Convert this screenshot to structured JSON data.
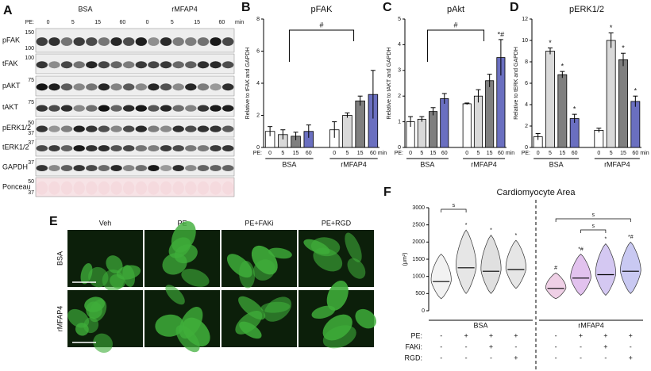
{
  "blot": {
    "panel": "A",
    "groups": [
      "BSA",
      "rMFAP4"
    ],
    "pe_label": "PE:",
    "lanes": [
      "0",
      "5",
      "15",
      "60",
      "0",
      "5",
      "15",
      "60"
    ],
    "unit": "min",
    "rows": [
      {
        "label": "pFAK",
        "markers": [
          150,
          100
        ]
      },
      {
        "label": "tFAK",
        "markers": [
          100
        ]
      },
      {
        "label": "pAKT",
        "markers": [
          75
        ]
      },
      {
        "label": "tAKT",
        "markers": [
          75
        ]
      },
      {
        "label": "pERK1/2",
        "markers": [
          50,
          37
        ]
      },
      {
        "label": "tERK1/2",
        "markers": [
          37
        ]
      },
      {
        "label": "GAPDH",
        "markers": [
          37
        ]
      },
      {
        "label": "Ponceau",
        "markers": [
          50,
          37
        ]
      }
    ]
  },
  "micrographs": {
    "panel": "E",
    "columns": [
      "Veh",
      "PE",
      "PE+FAKi",
      "PE+RGD"
    ],
    "rows": [
      "BSA",
      "rMFAP4"
    ]
  },
  "chart_data": [
    {
      "type": "bar",
      "panel": "B",
      "title": "pFAK",
      "ylabel": "Relative to tFAK and GAPDH",
      "xlabel": "PE:",
      "unit": "min",
      "groups": [
        "BSA",
        "rMFAP4"
      ],
      "categories": [
        "0",
        "5",
        "15",
        "60",
        "0",
        "5",
        "15",
        "60"
      ],
      "values": [
        1.0,
        0.8,
        0.7,
        1.0,
        1.1,
        2.0,
        2.9,
        3.3
      ],
      "errors": [
        0.3,
        0.3,
        0.25,
        0.4,
        0.5,
        0.15,
        0.3,
        1.5
      ],
      "colors": [
        "#ffffff",
        "#d9d9d9",
        "#7f7f7f",
        "#6a6fc0",
        "#ffffff",
        "#d9d9d9",
        "#7f7f7f",
        "#6a6fc0"
      ],
      "ylim": [
        0,
        8
      ],
      "yticks": [
        0,
        2,
        4,
        6,
        8
      ],
      "annotations": [
        "#"
      ]
    },
    {
      "type": "bar",
      "panel": "C",
      "title": "pAkt",
      "ylabel": "Relative to tAKT and GAPDH",
      "xlabel": "PE:",
      "unit": "min",
      "groups": [
        "BSA",
        "rMFAP4"
      ],
      "categories": [
        "0",
        "5",
        "15",
        "60",
        "0",
        "5",
        "15",
        "60"
      ],
      "values": [
        1.0,
        1.1,
        1.4,
        1.9,
        1.7,
        2.0,
        2.6,
        3.5
      ],
      "errors": [
        0.2,
        0.1,
        0.15,
        0.2,
        0.03,
        0.25,
        0.25,
        0.7
      ],
      "colors": [
        "#ffffff",
        "#d9d9d9",
        "#7f7f7f",
        "#6a6fc0",
        "#ffffff",
        "#d9d9d9",
        "#7f7f7f",
        "#6a6fc0"
      ],
      "ylim": [
        0,
        5
      ],
      "yticks": [
        0,
        1,
        2,
        3,
        4,
        5
      ],
      "annotations": [
        "#",
        "*#"
      ]
    },
    {
      "type": "bar",
      "panel": "D",
      "title": "pERK1/2",
      "ylabel": "Relative to tERK and GAPDH",
      "xlabel": "PE:",
      "unit": "min",
      "groups": [
        "BSA",
        "rMFAP4"
      ],
      "categories": [
        "0",
        "5",
        "15",
        "60",
        "0",
        "5",
        "15",
        "60"
      ],
      "values": [
        1.0,
        9.0,
        6.8,
        2.7,
        1.6,
        10.0,
        8.2,
        4.3
      ],
      "errors": [
        0.3,
        0.3,
        0.3,
        0.4,
        0.2,
        0.7,
        0.6,
        0.5
      ],
      "colors": [
        "#ffffff",
        "#d9d9d9",
        "#7f7f7f",
        "#6a6fc0",
        "#ffffff",
        "#d9d9d9",
        "#7f7f7f",
        "#6a6fc0"
      ],
      "ylim": [
        0,
        12
      ],
      "yticks": [
        0,
        2,
        4,
        6,
        8,
        10,
        12
      ],
      "sig": [
        null,
        "*",
        "*",
        "*",
        null,
        "*",
        "*",
        "*"
      ]
    },
    {
      "type": "violin",
      "panel": "F",
      "title": "Cardiomyocyte Area",
      "ylabel": "(μm²)",
      "groups": [
        "BSA",
        "rMFAP4"
      ],
      "medians": [
        850,
        1250,
        1150,
        1200,
        650,
        950,
        1050,
        1150
      ],
      "mins": [
        350,
        500,
        500,
        650,
        350,
        450,
        450,
        500
      ],
      "maxs": [
        1650,
        2350,
        2200,
        2050,
        1100,
        1650,
        1950,
        2000
      ],
      "colors": [
        "#f2f2f2",
        "#e6e6e6",
        "#e0e0e0",
        "#e6e6e6",
        "#efd0e6",
        "#e2c2ee",
        "#d4c8f2",
        "#c9c9f2"
      ],
      "ylim": [
        0,
        3000
      ],
      "yticks": [
        0,
        500,
        1000,
        1500,
        2000,
        2500,
        3000
      ],
      "sig": [
        null,
        "*",
        "*",
        "*",
        "#",
        "*#",
        "*",
        "*#"
      ],
      "bracket_labels": [
        "s",
        "s",
        "s"
      ],
      "table": [
        {
          "label": "PE:",
          "cells": [
            "-",
            "+",
            "+",
            "+",
            "-",
            "+",
            "+",
            "+"
          ]
        },
        {
          "label": "FAKi:",
          "cells": [
            "-",
            "-",
            "+",
            "-",
            "-",
            "-",
            "+",
            "-"
          ]
        },
        {
          "label": "RGD:",
          "cells": [
            "-",
            "-",
            "-",
            "+",
            "-",
            "-",
            "-",
            "+"
          ]
        }
      ]
    }
  ]
}
